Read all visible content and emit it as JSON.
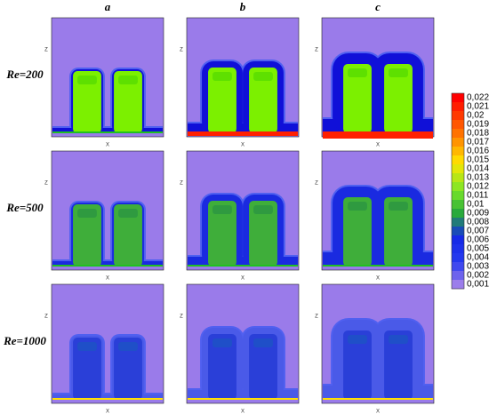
{
  "figure": {
    "columns": [
      "a",
      "b",
      "c"
    ],
    "rows": [
      "Re=200",
      "Re=500",
      "Re=1000"
    ],
    "x_axis_label": "X",
    "z_axis_label": "Z",
    "colorbar_labels": [
      "0,022",
      "0,021",
      "0,02",
      "0,019",
      "0,018",
      "0,017",
      "0,016",
      "0,015",
      "0,014",
      "0,013",
      "0,012",
      "0,011",
      "0,01",
      "0,009",
      "0,008",
      "0,007",
      "0,006",
      "0,005",
      "0,004",
      "0,003",
      "0,002",
      "0,001"
    ]
  }
}
